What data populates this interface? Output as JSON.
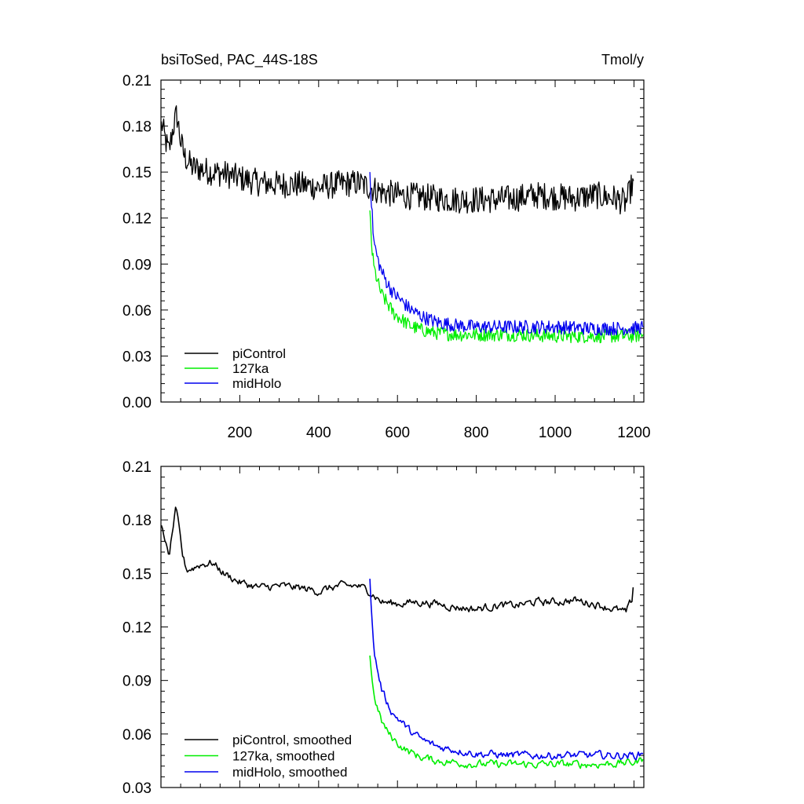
{
  "header": {
    "left": "bsiToSed, PAC_44S-18S",
    "right": "Tmol/y"
  },
  "chart_data": [
    {
      "type": "line",
      "title": "bsiToSed, PAC_44S-18S",
      "units": "Tmol/y",
      "xlim": [
        0,
        1225
      ],
      "ylim": [
        0,
        0.21
      ],
      "x_ticks": [
        200,
        400,
        600,
        800,
        1000,
        1200
      ],
      "x_tick_labels": [
        "200",
        "400",
        "600",
        "800",
        "1000",
        "1200"
      ],
      "y_ticks": [
        0,
        0.03,
        0.06,
        0.09,
        0.12,
        0.15,
        0.18,
        0.21
      ],
      "y_tick_labels": [
        "0.00",
        "0.03",
        "0.06",
        "0.09",
        "0.12",
        "0.15",
        "0.18",
        "0.21"
      ],
      "legend_position": "bottom-left",
      "series": [
        {
          "name": "piControl",
          "color": "#000000",
          "x": [
            1,
            10,
            20,
            30,
            40,
            50,
            60,
            80,
            100,
            130,
            160,
            200,
            250,
            300,
            350,
            400,
            450,
            500,
            530,
            560,
            600,
            650,
            700,
            750,
            800,
            850,
            900,
            950,
            1000,
            1050,
            1100,
            1150,
            1180,
            1200
          ],
          "y": [
            0.183,
            0.172,
            0.163,
            0.178,
            0.188,
            0.17,
            0.16,
            0.153,
            0.152,
            0.15,
            0.149,
            0.146,
            0.143,
            0.142,
            0.142,
            0.14,
            0.142,
            0.143,
            0.14,
            0.137,
            0.135,
            0.134,
            0.133,
            0.132,
            0.132,
            0.132,
            0.133,
            0.135,
            0.134,
            0.133,
            0.135,
            0.133,
            0.13,
            0.145
          ]
        },
        {
          "name": "127ka",
          "color": "#00ee00",
          "x": [
            530,
            535,
            540,
            550,
            560,
            575,
            590,
            610,
            630,
            660,
            700,
            750,
            800,
            900,
            1000,
            1100,
            1200,
            1225
          ],
          "y": [
            0.125,
            0.1,
            0.088,
            0.078,
            0.07,
            0.064,
            0.058,
            0.054,
            0.05,
            0.047,
            0.045,
            0.044,
            0.044,
            0.044,
            0.043,
            0.043,
            0.043,
            0.044
          ]
        },
        {
          "name": "midHolo",
          "color": "#0000ee",
          "x": [
            530,
            535,
            540,
            550,
            560,
            575,
            590,
            610,
            630,
            660,
            700,
            750,
            800,
            900,
            1000,
            1100,
            1200,
            1225
          ],
          "y": [
            0.15,
            0.125,
            0.105,
            0.093,
            0.085,
            0.077,
            0.071,
            0.066,
            0.061,
            0.056,
            0.052,
            0.05,
            0.049,
            0.049,
            0.049,
            0.048,
            0.048,
            0.049
          ]
        }
      ]
    },
    {
      "type": "line",
      "xlim": [
        0,
        1225
      ],
      "ylim": [
        0.03,
        0.21
      ],
      "x_ticks": [
        200,
        400,
        600,
        800,
        1000,
        1200
      ],
      "y_ticks": [
        0.03,
        0.06,
        0.09,
        0.12,
        0.15,
        0.18,
        0.21
      ],
      "y_tick_labels": [
        "0.03",
        "0.06",
        "0.09",
        "0.12",
        "0.15",
        "0.18",
        "0.21"
      ],
      "legend_position": "bottom-left",
      "series": [
        {
          "name": "piControl, smoothed",
          "color": "#000000",
          "x": [
            1,
            10,
            20,
            30,
            38,
            45,
            55,
            65,
            80,
            100,
            130,
            160,
            200,
            250,
            300,
            350,
            400,
            450,
            500,
            530,
            560,
            600,
            650,
            700,
            750,
            800,
            850,
            900,
            950,
            1000,
            1050,
            1100,
            1150,
            1180,
            1195,
            1200
          ],
          "y": [
            0.177,
            0.17,
            0.158,
            0.175,
            0.186,
            0.176,
            0.16,
            0.152,
            0.153,
            0.155,
            0.156,
            0.15,
            0.145,
            0.142,
            0.143,
            0.142,
            0.14,
            0.143,
            0.143,
            0.14,
            0.134,
            0.133,
            0.134,
            0.133,
            0.131,
            0.13,
            0.132,
            0.132,
            0.134,
            0.134,
            0.135,
            0.133,
            0.13,
            0.128,
            0.135,
            0.147
          ]
        },
        {
          "name": "127ka, smoothed",
          "color": "#00ee00",
          "x": [
            530,
            535,
            540,
            550,
            560,
            575,
            590,
            610,
            630,
            660,
            700,
            750,
            800,
            900,
            1000,
            1100,
            1200,
            1225
          ],
          "y": [
            0.104,
            0.092,
            0.082,
            0.074,
            0.067,
            0.061,
            0.057,
            0.053,
            0.05,
            0.047,
            0.045,
            0.044,
            0.043,
            0.043,
            0.043,
            0.043,
            0.044,
            0.046
          ]
        },
        {
          "name": "midHolo, smoothed",
          "color": "#0000ee",
          "x": [
            530,
            535,
            540,
            550,
            560,
            575,
            590,
            610,
            630,
            660,
            700,
            750,
            800,
            900,
            1000,
            1100,
            1200,
            1225
          ],
          "y": [
            0.147,
            0.125,
            0.107,
            0.095,
            0.085,
            0.077,
            0.071,
            0.067,
            0.062,
            0.057,
            0.053,
            0.051,
            0.049,
            0.048,
            0.048,
            0.048,
            0.048,
            0.049
          ]
        }
      ]
    }
  ]
}
